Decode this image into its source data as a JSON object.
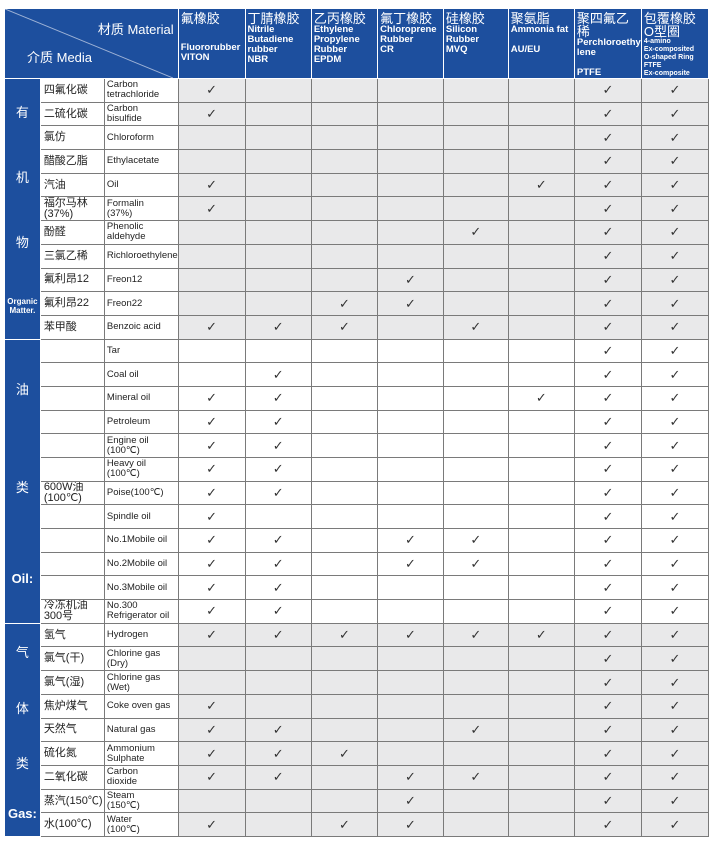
{
  "header": {
    "material_label": "材质 Material",
    "media_label": "介质 Media",
    "columns": [
      {
        "cn": "氟橡胶",
        "en": "Fluororubber\nVITON"
      },
      {
        "cn": "丁腈橡胶",
        "en": "Nitrile\nButadiene\nrubber\nNBR"
      },
      {
        "cn": "乙丙橡胶",
        "en": "Ethylene\nPropylene\nRubber\nEPDM"
      },
      {
        "cn": "氟丁橡胶",
        "en": "Chloroprene\nRubber\nCR"
      },
      {
        "cn": "硅橡胶",
        "en": "Silicon\nRubber\nMVQ"
      },
      {
        "cn": "聚氨脂",
        "en": "Ammonia fat\n\nAU/EU"
      },
      {
        "cn": "聚四氟乙稀",
        "en": "Perchloroethy\nlene\n\nPTFE"
      },
      {
        "cn": "包覆橡胶\nO型圈",
        "en": "4-amino\nEx-composited\nO-shaped Ring\nFTFE\nEx-composite"
      }
    ]
  },
  "check_mark": "✓",
  "sections": [
    {
      "labels": [
        "有",
        "机",
        "物"
      ],
      "eng_label": "Organic\nMatter.",
      "shade": "gray",
      "rows": [
        {
          "cn": "四氟化碳",
          "en": "Carbon\ntetrachloride",
          "checks": [
            1,
            0,
            0,
            0,
            0,
            0,
            1,
            1
          ]
        },
        {
          "cn": "二硫化碳",
          "en": "Carbon\nbisulfide",
          "checks": [
            1,
            0,
            0,
            0,
            0,
            0,
            1,
            1
          ]
        },
        {
          "cn": "氯仿",
          "en": "Chloroform",
          "checks": [
            0,
            0,
            0,
            0,
            0,
            0,
            1,
            1
          ]
        },
        {
          "cn": "醋酸乙脂",
          "en": "Ethylacetate",
          "checks": [
            0,
            0,
            0,
            0,
            0,
            0,
            1,
            1
          ]
        },
        {
          "cn": "汽油",
          "en": "Oil",
          "checks": [
            1,
            0,
            0,
            0,
            0,
            1,
            1,
            1
          ]
        },
        {
          "cn": "福尔马林\n(37%)",
          "en": "Formalin\n(37%)",
          "checks": [
            1,
            0,
            0,
            0,
            0,
            0,
            1,
            1
          ]
        },
        {
          "cn": "酚醛",
          "en": "Phenolic\naldehyde",
          "checks": [
            0,
            0,
            0,
            0,
            1,
            0,
            1,
            1
          ]
        },
        {
          "cn": "三氯乙稀",
          "en": "Richloroethylene",
          "checks": [
            0,
            0,
            0,
            0,
            0,
            0,
            1,
            1
          ]
        },
        {
          "cn": "氟利昂12",
          "en": "Freon12",
          "checks": [
            0,
            0,
            0,
            1,
            0,
            0,
            1,
            1
          ]
        },
        {
          "cn": "氟利昂22",
          "en": "Freon22",
          "checks": [
            0,
            0,
            1,
            1,
            0,
            0,
            1,
            1
          ]
        },
        {
          "cn": "苯甲酸",
          "en": "Benzoic acid",
          "checks": [
            1,
            1,
            1,
            0,
            1,
            0,
            1,
            1
          ]
        }
      ]
    },
    {
      "labels": [
        "油",
        "类"
      ],
      "eng_label": "Oil:",
      "shade": "white",
      "rows": [
        {
          "cn": "",
          "en": "Tar",
          "checks": [
            0,
            0,
            0,
            0,
            0,
            0,
            1,
            1
          ]
        },
        {
          "cn": "",
          "en": "Coal oil",
          "checks": [
            0,
            1,
            0,
            0,
            0,
            0,
            1,
            1
          ]
        },
        {
          "cn": "",
          "en": "Mineral oil",
          "checks": [
            1,
            1,
            0,
            0,
            0,
            1,
            1,
            1
          ]
        },
        {
          "cn": "",
          "en": "Petroleum",
          "checks": [
            1,
            1,
            0,
            0,
            0,
            0,
            1,
            1
          ]
        },
        {
          "cn": "",
          "en": "Engine oil\n(100℃)",
          "checks": [
            1,
            1,
            0,
            0,
            0,
            0,
            1,
            1
          ]
        },
        {
          "cn": "",
          "en": "Heavy oil\n(100℃)",
          "checks": [
            1,
            1,
            0,
            0,
            0,
            0,
            1,
            1
          ]
        },
        {
          "cn": "600W油\n(100℃)",
          "en": "Poise(100℃)",
          "checks": [
            1,
            1,
            0,
            0,
            0,
            0,
            1,
            1
          ]
        },
        {
          "cn": "",
          "en": "Spindle oil",
          "checks": [
            1,
            0,
            0,
            0,
            0,
            0,
            1,
            1
          ]
        },
        {
          "cn": "",
          "en": "No.1Mobile oil",
          "checks": [
            1,
            1,
            0,
            1,
            1,
            0,
            1,
            1
          ]
        },
        {
          "cn": "",
          "en": "No.2Mobile oil",
          "checks": [
            1,
            1,
            0,
            1,
            1,
            0,
            1,
            1
          ]
        },
        {
          "cn": "",
          "en": "No.3Mobile oil",
          "checks": [
            1,
            1,
            0,
            0,
            0,
            0,
            1,
            1
          ]
        },
        {
          "cn": "冷冻机油\n300号",
          "en": "No.300\nRefrigerator oil",
          "checks": [
            1,
            1,
            0,
            0,
            0,
            0,
            1,
            1
          ]
        }
      ]
    },
    {
      "labels": [
        "气",
        "体",
        "类"
      ],
      "eng_label": "Gas:",
      "shade": "gray",
      "rows": [
        {
          "cn": "氢气",
          "en": "Hydrogen",
          "checks": [
            1,
            1,
            1,
            1,
            1,
            1,
            1,
            1
          ]
        },
        {
          "cn": "氯气(干)",
          "en": "Chlorine gas\n(Dry)",
          "checks": [
            0,
            0,
            0,
            0,
            0,
            0,
            1,
            1
          ]
        },
        {
          "cn": "氯气(湿)",
          "en": "Chlorine gas\n(Wet)",
          "checks": [
            0,
            0,
            0,
            0,
            0,
            0,
            1,
            1
          ]
        },
        {
          "cn": "焦炉煤气",
          "en": "Coke oven gas",
          "checks": [
            1,
            0,
            0,
            0,
            0,
            0,
            1,
            1
          ]
        },
        {
          "cn": "天然气",
          "en": "Natural gas",
          "checks": [
            1,
            1,
            0,
            0,
            1,
            0,
            1,
            1
          ]
        },
        {
          "cn": "硫化氮",
          "en": "Ammonium\nSulphate",
          "checks": [
            1,
            1,
            1,
            0,
            0,
            0,
            1,
            1
          ]
        },
        {
          "cn": "二氧化碳",
          "en": "Carbon\ndioxide",
          "checks": [
            1,
            1,
            0,
            1,
            1,
            0,
            1,
            1
          ]
        },
        {
          "cn": "蒸汽(150℃)",
          "en": "Steam\n(150℃)",
          "checks": [
            0,
            0,
            0,
            1,
            0,
            0,
            1,
            1
          ]
        },
        {
          "cn": "水(100℃)",
          "en": "Water\n(100℃)",
          "checks": [
            1,
            0,
            1,
            1,
            0,
            0,
            1,
            1
          ]
        }
      ]
    }
  ],
  "colors": {
    "header_blue": "#1d4f9e",
    "row_gray": "#e9e9ea"
  }
}
